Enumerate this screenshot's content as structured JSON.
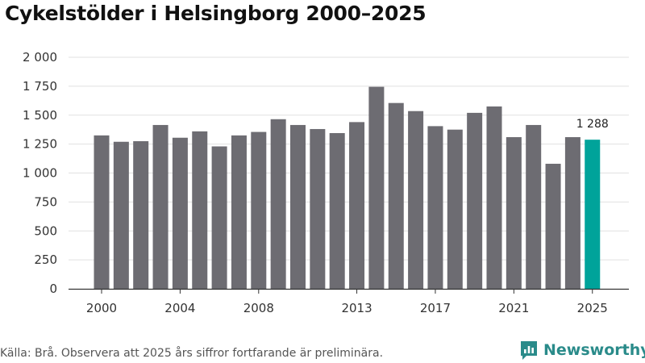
{
  "chart_data": {
    "type": "bar",
    "title": "Cykelstölder i Helsingborg 2000–2025",
    "categories": [
      "2000",
      "2001",
      "2002",
      "2003",
      "2004",
      "2005",
      "2006",
      "2007",
      "2008",
      "2009",
      "2010",
      "2011",
      "2012",
      "2013",
      "2014",
      "2015",
      "2016",
      "2017",
      "2018",
      "2019",
      "2020",
      "2021",
      "2022",
      "2023",
      "2024",
      "2025"
    ],
    "values": [
      1325,
      1270,
      1275,
      1415,
      1305,
      1360,
      1230,
      1325,
      1355,
      1465,
      1415,
      1380,
      1345,
      1440,
      1745,
      1605,
      1535,
      1405,
      1375,
      1520,
      1575,
      1310,
      1415,
      1080,
      1310,
      1288
    ],
    "x_tick_labels": [
      "2000",
      "2004",
      "2008",
      "2013",
      "2017",
      "2021",
      "2025"
    ],
    "y_tick_labels": [
      "0",
      "250",
      "500",
      "750",
      "1 000",
      "1 250",
      "1 500",
      "1 750",
      "2 000"
    ],
    "ylim": [
      0,
      2000
    ],
    "xlabel": "",
    "ylabel": "",
    "grid": true,
    "highlight_index": 25,
    "highlight_label": "1 288",
    "colors": {
      "bar": "#6d6c72",
      "highlight": "#00a39a",
      "grid": "#e1e1e1",
      "axis": "#333333"
    }
  },
  "footer": {
    "source": "Källa: Brå. Observera att 2025 års siffror fortfarande är preliminära."
  },
  "brand": {
    "name": "Newsworthy",
    "icon": "newsworthy-logo-icon",
    "color": "#2a8b8a"
  }
}
